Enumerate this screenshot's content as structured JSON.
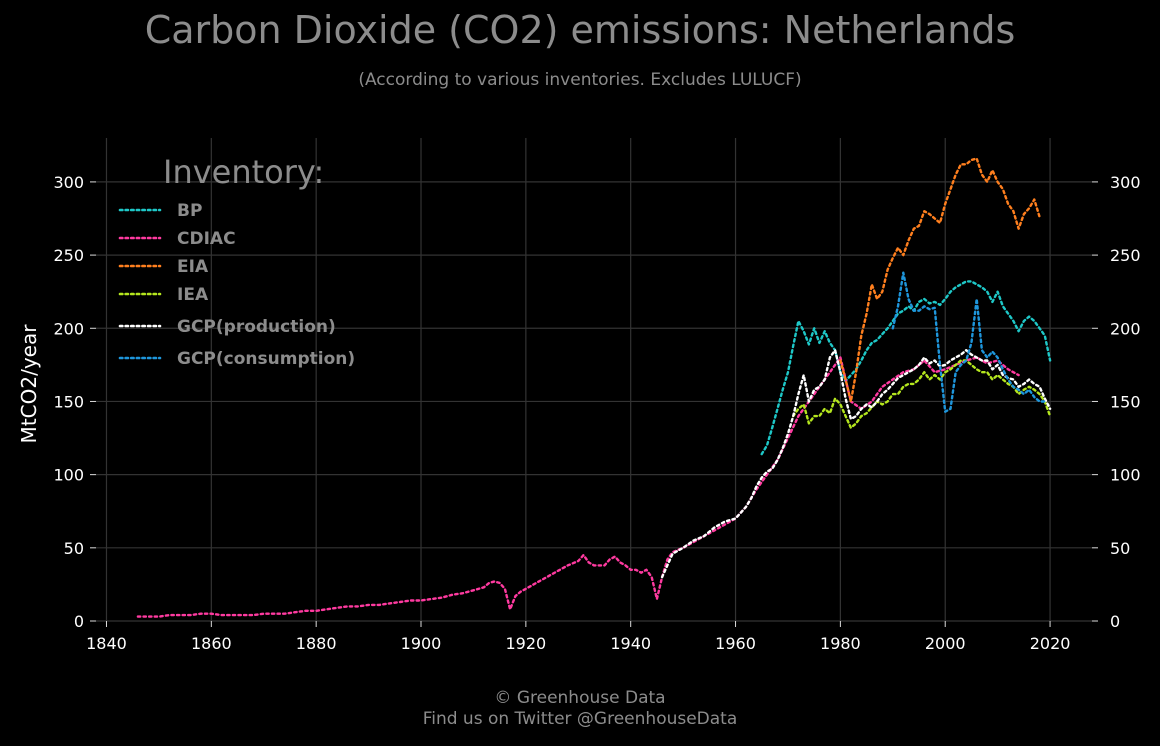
{
  "chart_data": {
    "type": "line",
    "title": "Carbon Dioxide (CO2) emissions: Netherlands",
    "subtitle": "(According to various inventories. Excludes LULUCF)",
    "xlabel": "",
    "ylabel": "MtCO2/year",
    "xlim": [
      1838,
      2028
    ],
    "ylim": [
      0,
      330
    ],
    "x_ticks": [
      1840,
      1860,
      1880,
      1900,
      1920,
      1940,
      1960,
      1980,
      2000,
      2020
    ],
    "y_ticks": [
      0,
      50,
      100,
      150,
      200,
      250,
      300
    ],
    "grid": true,
    "legend_title": "Inventory:",
    "legend_position": "top-left",
    "line_style": "dotted",
    "series": [
      {
        "name": "BP",
        "color": "#1ec8c8",
        "x": [
          1965,
          1966,
          1967,
          1968,
          1969,
          1970,
          1971,
          1972,
          1973,
          1974,
          1975,
          1976,
          1977,
          1978,
          1979,
          1980,
          1981,
          1982,
          1983,
          1984,
          1985,
          1986,
          1987,
          1988,
          1989,
          1990,
          1991,
          1992,
          1993,
          1994,
          1995,
          1996,
          1997,
          1998,
          1999,
          2000,
          2001,
          2002,
          2003,
          2004,
          2005,
          2006,
          2007,
          2008,
          2009,
          2010,
          2011,
          2012,
          2013,
          2014,
          2015,
          2016,
          2017,
          2018,
          2019,
          2020
        ],
        "y": [
          114,
          120,
          132,
          145,
          158,
          170,
          188,
          205,
          198,
          189,
          200,
          190,
          198,
          190,
          185,
          170,
          164,
          168,
          172,
          178,
          185,
          190,
          192,
          196,
          200,
          205,
          210,
          212,
          215,
          212,
          218,
          220,
          217,
          218,
          216,
          220,
          225,
          228,
          230,
          232,
          232,
          230,
          228,
          225,
          218,
          225,
          215,
          210,
          205,
          198,
          205,
          208,
          205,
          200,
          195,
          178
        ]
      },
      {
        "name": "CDIAC",
        "color": "#ff3aa0",
        "x": [
          1846,
          1848,
          1850,
          1852,
          1854,
          1856,
          1858,
          1860,
          1862,
          1864,
          1866,
          1868,
          1870,
          1872,
          1874,
          1876,
          1878,
          1880,
          1882,
          1884,
          1886,
          1888,
          1890,
          1892,
          1894,
          1896,
          1898,
          1900,
          1902,
          1904,
          1906,
          1908,
          1910,
          1912,
          1913,
          1914,
          1915,
          1916,
          1917,
          1918,
          1919,
          1920,
          1922,
          1924,
          1926,
          1928,
          1930,
          1931,
          1932,
          1933,
          1934,
          1935,
          1936,
          1937,
          1938,
          1939,
          1940,
          1941,
          1942,
          1943,
          1944,
          1945,
          1946,
          1947,
          1948,
          1950,
          1952,
          1954,
          1956,
          1958,
          1960,
          1962,
          1964,
          1966,
          1968,
          1970,
          1972,
          1974,
          1976,
          1978,
          1980,
          1982,
          1984,
          1986,
          1988,
          1990,
          1992,
          1994,
          1996,
          1998,
          2000,
          2002,
          2004,
          2006,
          2008,
          2010,
          2012,
          2014
        ],
        "y": [
          3,
          3,
          3,
          4,
          4,
          4,
          5,
          5,
          4,
          4,
          4,
          4,
          5,
          5,
          5,
          6,
          7,
          7,
          8,
          9,
          10,
          10,
          11,
          11,
          12,
          13,
          14,
          14,
          15,
          16,
          18,
          19,
          21,
          23,
          26,
          27,
          26,
          22,
          8,
          17,
          20,
          22,
          26,
          30,
          34,
          38,
          41,
          45,
          40,
          38,
          38,
          38,
          42,
          44,
          40,
          38,
          35,
          35,
          33,
          35,
          30,
          15,
          30,
          42,
          47,
          50,
          54,
          58,
          62,
          66,
          70,
          78,
          90,
          100,
          110,
          125,
          140,
          150,
          160,
          170,
          180,
          150,
          145,
          150,
          160,
          165,
          170,
          172,
          178,
          170,
          172,
          175,
          178,
          180,
          176,
          178,
          172,
          168
        ]
      },
      {
        "name": "EIA",
        "color": "#ff7f1e",
        "x": [
          1980,
          1981,
          1982,
          1983,
          1984,
          1985,
          1986,
          1987,
          1988,
          1989,
          1990,
          1991,
          1992,
          1993,
          1994,
          1995,
          1996,
          1997,
          1998,
          1999,
          2000,
          2001,
          2002,
          2003,
          2004,
          2005,
          2006,
          2007,
          2008,
          2009,
          2010,
          2011,
          2012,
          2013,
          2014,
          2015,
          2016,
          2017,
          2018
        ],
        "y": [
          178,
          165,
          150,
          170,
          195,
          210,
          230,
          220,
          225,
          240,
          248,
          255,
          250,
          260,
          268,
          270,
          280,
          278,
          275,
          272,
          285,
          295,
          305,
          312,
          312,
          315,
          316,
          305,
          300,
          308,
          300,
          295,
          285,
          280,
          268,
          278,
          282,
          288,
          276
        ]
      },
      {
        "name": "IEA",
        "color": "#b4e61e",
        "x": [
          1971,
          1972,
          1973,
          1974,
          1975,
          1976,
          1977,
          1978,
          1979,
          1980,
          1981,
          1982,
          1983,
          1984,
          1985,
          1986,
          1987,
          1988,
          1989,
          1990,
          1991,
          1992,
          1993,
          1994,
          1995,
          1996,
          1997,
          1998,
          1999,
          2000,
          2001,
          2002,
          2003,
          2004,
          2005,
          2006,
          2007,
          2008,
          2009,
          2010,
          2011,
          2012,
          2013,
          2014,
          2015,
          2016,
          2017,
          2018,
          2019,
          2020
        ],
        "y": [
          140,
          145,
          148,
          135,
          140,
          140,
          145,
          142,
          152,
          148,
          140,
          132,
          135,
          140,
          142,
          146,
          150,
          148,
          150,
          155,
          155,
          160,
          162,
          162,
          165,
          170,
          165,
          168,
          165,
          170,
          172,
          175,
          178,
          178,
          175,
          172,
          170,
          170,
          165,
          168,
          165,
          162,
          160,
          155,
          158,
          160,
          158,
          155,
          150,
          140
        ]
      },
      {
        "name": "GCP(production)",
        "color": "#ffffff",
        "x": [
          1946,
          1948,
          1950,
          1952,
          1954,
          1956,
          1958,
          1960,
          1961,
          1962,
          1963,
          1964,
          1965,
          1966,
          1967,
          1968,
          1969,
          1970,
          1971,
          1972,
          1973,
          1974,
          1975,
          1976,
          1977,
          1978,
          1979,
          1980,
          1981,
          1982,
          1983,
          1984,
          1985,
          1986,
          1987,
          1988,
          1989,
          1990,
          1991,
          1992,
          1993,
          1994,
          1995,
          1996,
          1997,
          1998,
          1999,
          2000,
          2001,
          2002,
          2003,
          2004,
          2005,
          2006,
          2007,
          2008,
          2009,
          2010,
          2011,
          2012,
          2013,
          2014,
          2015,
          2016,
          2017,
          2018,
          2019,
          2020
        ],
        "y": [
          30,
          46,
          50,
          55,
          58,
          64,
          68,
          70,
          74,
          78,
          84,
          92,
          98,
          102,
          104,
          110,
          118,
          128,
          140,
          155,
          168,
          150,
          158,
          160,
          165,
          180,
          185,
          170,
          152,
          138,
          140,
          145,
          148,
          146,
          150,
          155,
          158,
          162,
          166,
          168,
          170,
          172,
          175,
          180,
          176,
          178,
          174,
          175,
          178,
          180,
          182,
          185,
          182,
          180,
          178,
          178,
          172,
          175,
          168,
          166,
          165,
          160,
          162,
          165,
          162,
          160,
          152,
          145
        ]
      },
      {
        "name": "GCP(consumption)",
        "color": "#1e96dc",
        "x": [
          1990,
          1991,
          1992,
          1993,
          1994,
          1995,
          1996,
          1997,
          1998,
          1999,
          2000,
          2001,
          2002,
          2003,
          2004,
          2005,
          2006,
          2007,
          2008,
          2009,
          2010,
          2011,
          2012,
          2013,
          2014,
          2015,
          2016,
          2017,
          2018,
          2019
        ],
        "y": [
          200,
          215,
          238,
          220,
          212,
          212,
          215,
          213,
          214,
          175,
          143,
          145,
          170,
          175,
          178,
          190,
          220,
          185,
          180,
          184,
          180,
          172,
          165,
          160,
          158,
          155,
          158,
          153,
          150,
          150
        ]
      }
    ]
  },
  "footer": {
    "line1": "© Greenhouse Data",
    "line2": "Find us on Twitter @GreenhouseData"
  }
}
